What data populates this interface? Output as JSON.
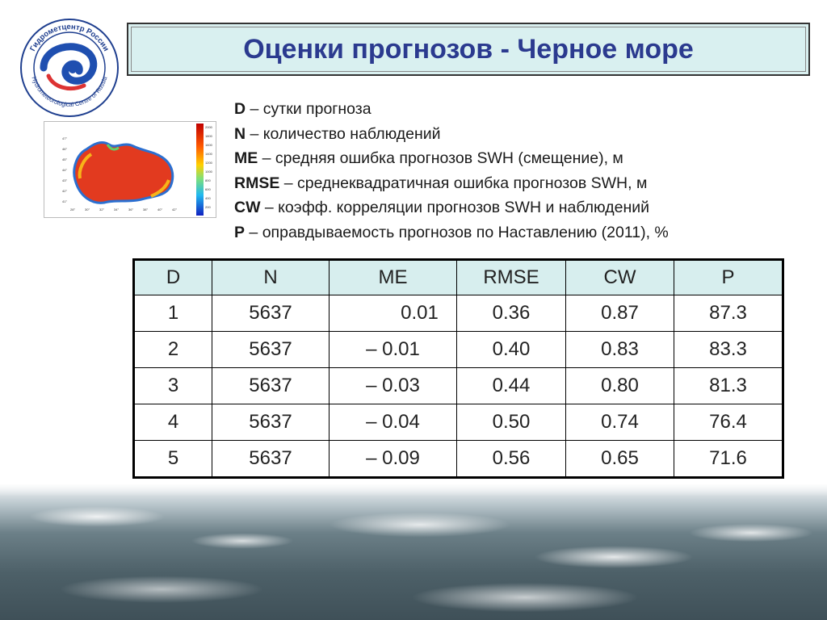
{
  "title": "Оценки прогнозов - Черное море",
  "logo": {
    "text_top": "Гидрометцентр России",
    "text_bottom": "Hydrometeorological Centre of Russia"
  },
  "map": {
    "lat_ticks": [
      "47°",
      "46°",
      "45°",
      "44°",
      "43°",
      "42°",
      "41°"
    ],
    "lon_ticks": [
      "28°",
      "30°",
      "32°",
      "34°",
      "36°",
      "38°",
      "40°",
      "42°"
    ],
    "colorbar_ticks": [
      "2000",
      "1800",
      "1600",
      "1400",
      "1200",
      "1000",
      "800",
      "600",
      "400",
      "200"
    ]
  },
  "legend": [
    {
      "key": "D",
      "text": " – сутки прогноза"
    },
    {
      "key": "N",
      "text": " – количество наблюдений"
    },
    {
      "key": "ME",
      "text": " – средняя ошибка прогнозов SWH (смещение), м"
    },
    {
      "key": "RMSE",
      "text": " – среднеквадратичная ошибка прогнозов SWH, м"
    },
    {
      "key": "CW",
      "text": " – коэфф. корреляции прогнозов SWH и наблюдений"
    },
    {
      "key": "P",
      "text": " –  оправдываемость прогнозов по Наставлению (2011), %"
    }
  ],
  "table": {
    "headers": [
      "D",
      "N",
      "ME",
      "RMSE",
      "CW",
      "P"
    ],
    "rows": [
      [
        "1",
        "5637",
        "0.01",
        "0.36",
        "0.87",
        "87.3"
      ],
      [
        "2",
        "5637",
        "– 0.01",
        "0.40",
        "0.83",
        "83.3"
      ],
      [
        "3",
        "5637",
        "– 0.03",
        "0.44",
        "0.80",
        "81.3"
      ],
      [
        "4",
        "5637",
        "– 0.04",
        "0.50",
        "0.74",
        "76.4"
      ],
      [
        "5",
        "5637",
        "– 0.09",
        "0.56",
        "0.65",
        "71.6"
      ]
    ]
  },
  "colors": {
    "title_text": "#2b3a8f",
    "header_fill": "#d7eeee",
    "title_fill": "#d9f0f0"
  }
}
